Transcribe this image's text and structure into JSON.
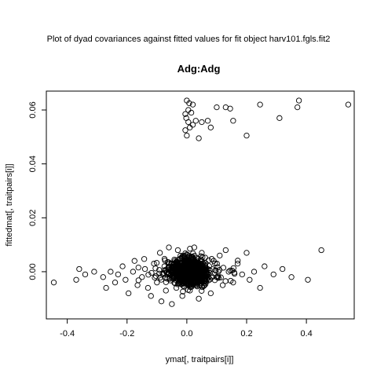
{
  "page": {
    "heading": "Plot of dyad covariances against fitted values for fit object  harv101.fgls.fit2"
  },
  "chart_data": {
    "type": "scatter",
    "title": "Adg:Adg",
    "xlabel": "ymat[, traitpairs[i]]",
    "ylabel": "fittedmat[, traitpairs[i]]",
    "xlim": [
      -0.47,
      0.56
    ],
    "ylim": [
      -0.0175,
      0.067
    ],
    "xticks": [
      -0.4,
      -0.2,
      0.0,
      0.2,
      0.4
    ],
    "xtick_labels": [
      "-0.4",
      "-0.2",
      "0.0",
      "0.2",
      "0.4"
    ],
    "yticks": [
      0.0,
      0.02,
      0.04,
      0.06
    ],
    "ytick_labels": [
      "0.00",
      "0.02",
      "0.04",
      "0.06"
    ],
    "grid": false,
    "legend": "none",
    "marker": "open-circle",
    "color": "#000000",
    "series": [
      {
        "values_note_free": true,
        "points": [
          [
            0.54,
            0.062
          ],
          [
            0.375,
            0.0635
          ],
          [
            0.37,
            0.061
          ],
          [
            0.31,
            0.057
          ],
          [
            0.245,
            0.062
          ],
          [
            0.2,
            0.0505
          ],
          [
            0.155,
            0.056
          ],
          [
            0.145,
            0.0605
          ],
          [
            0.13,
            0.061
          ],
          [
            0.1,
            0.061
          ],
          [
            0.08,
            0.0535
          ],
          [
            0.07,
            0.056
          ],
          [
            0.05,
            0.0555
          ],
          [
            0.04,
            0.0495
          ],
          [
            0.02,
            0.062
          ],
          [
            0.015,
            0.059
          ],
          [
            0.02,
            0.0545
          ],
          [
            0.03,
            0.056
          ],
          [
            0.0,
            0.0635
          ],
          [
            0.005,
            0.06
          ],
          [
            -0.005,
            0.0585
          ],
          [
            0.005,
            0.0555
          ],
          [
            -0.005,
            0.0525
          ],
          [
            0.0,
            0.0505
          ],
          [
            0.01,
            0.0535
          ],
          [
            -0.002,
            0.057
          ],
          [
            0.008,
            0.0625
          ],
          [
            -0.445,
            -0.004
          ],
          [
            -0.37,
            -0.003
          ],
          [
            -0.36,
            0.001
          ],
          [
            -0.34,
            -0.001
          ],
          [
            -0.31,
            0.0
          ],
          [
            -0.28,
            -0.002
          ],
          [
            -0.27,
            -0.006
          ],
          [
            -0.255,
            0.0
          ],
          [
            -0.24,
            -0.004
          ],
          [
            -0.23,
            -0.001
          ],
          [
            -0.215,
            0.002
          ],
          [
            -0.205,
            -0.003
          ],
          [
            -0.195,
            -0.008
          ],
          [
            -0.18,
            0.0
          ],
          [
            -0.175,
            0.004
          ],
          [
            -0.165,
            -0.005
          ],
          [
            -0.15,
            -0.002
          ],
          [
            -0.14,
            0.001
          ],
          [
            -0.13,
            -0.006
          ],
          [
            -0.12,
            -0.009
          ],
          [
            -0.11,
            0.003
          ],
          [
            -0.1,
            -0.004
          ],
          [
            -0.09,
            0.007
          ],
          [
            -0.085,
            -0.011
          ],
          [
            -0.075,
            0.002
          ],
          [
            -0.07,
            -0.007
          ],
          [
            -0.06,
            0.009
          ],
          [
            -0.05,
            -0.012
          ],
          [
            -0.04,
            0.004
          ],
          [
            -0.035,
            -0.006
          ],
          [
            -0.03,
            0.008
          ],
          [
            -0.025,
            -0.002
          ],
          [
            -0.02,
            0.001
          ],
          [
            -0.015,
            -0.009
          ],
          [
            -0.01,
            0.006
          ],
          [
            -0.005,
            -0.004
          ],
          [
            0.0,
            0.0
          ],
          [
            0.005,
            0.003
          ],
          [
            0.01,
            -0.007
          ],
          [
            0.015,
            0.005
          ],
          [
            0.02,
            -0.001
          ],
          [
            0.025,
            0.009
          ],
          [
            0.03,
            -0.005
          ],
          [
            0.035,
            0.002
          ],
          [
            0.04,
            -0.01
          ],
          [
            0.05,
            0.007
          ],
          [
            0.06,
            -0.003
          ],
          [
            0.07,
            0.001
          ],
          [
            0.08,
            -0.008
          ],
          [
            0.09,
            0.004
          ],
          [
            0.1,
            -0.002
          ],
          [
            0.11,
            0.006
          ],
          [
            0.12,
            -0.005
          ],
          [
            0.13,
            0.008
          ],
          [
            0.14,
            0.0
          ],
          [
            0.155,
            -0.004
          ],
          [
            0.17,
            0.003
          ],
          [
            0.185,
            -0.001
          ],
          [
            0.2,
            0.007
          ],
          [
            0.21,
            -0.003
          ],
          [
            0.225,
            0.0
          ],
          [
            0.245,
            -0.006
          ],
          [
            0.26,
            0.002
          ],
          [
            0.29,
            -0.001
          ],
          [
            0.32,
            0.001
          ],
          [
            0.35,
            -0.002
          ],
          [
            0.405,
            -0.003
          ],
          [
            0.45,
            0.008
          ]
        ]
      }
    ]
  }
}
